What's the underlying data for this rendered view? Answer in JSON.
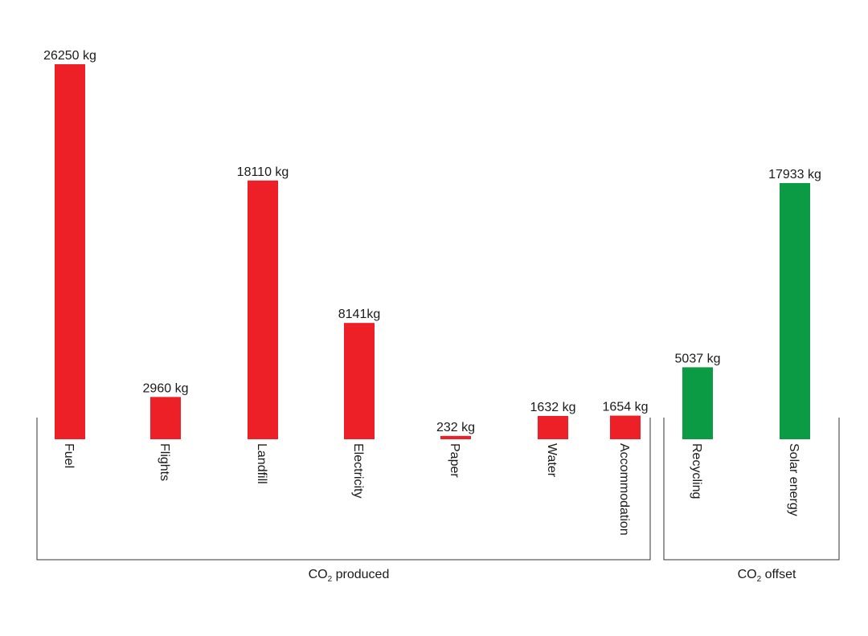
{
  "chart_data": {
    "type": "bar",
    "categories": [
      "Fuel",
      "Flights",
      "Landfill",
      "Electricity",
      "Paper",
      "Water",
      "Accommodation",
      "Recycling",
      "Solar energy"
    ],
    "values": [
      26250,
      2960,
      18110,
      8141,
      232,
      1632,
      1654,
      5037,
      17933
    ],
    "value_labels": [
      "26250 kg",
      "2960 kg",
      "18110 kg",
      "8141kg",
      "232 kg",
      "1632 kg",
      "1654 kg",
      "5037 kg",
      "17933 kg"
    ],
    "groups": [
      {
        "label_main": "CO",
        "label_sub": "2",
        "label_rest": " produced",
        "color": "#ed2027",
        "categories": [
          "Fuel",
          "Flights",
          "Landfill",
          "Electricity",
          "Paper",
          "Water",
          "Accommodation"
        ]
      },
      {
        "label_main": "CO",
        "label_sub": "2",
        "label_rest": " offset",
        "color": "#0c9b45",
        "categories": [
          "Recycling",
          "Solar energy"
        ]
      }
    ],
    "unit": "kg",
    "ylim": [
      0,
      26250
    ],
    "grid": false,
    "legend": "none"
  }
}
